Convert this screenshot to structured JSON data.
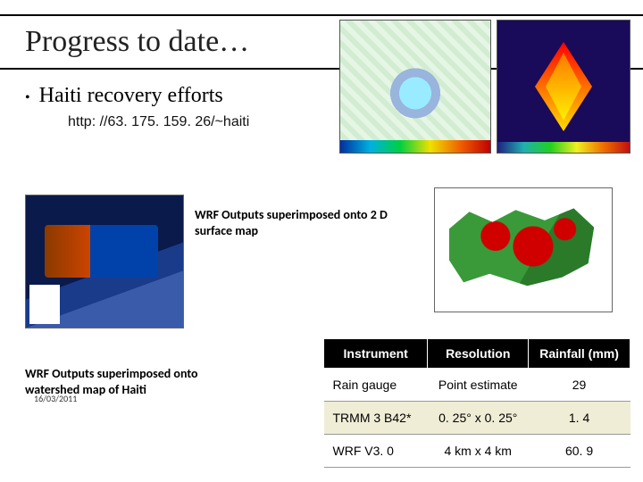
{
  "title": "Progress to date…",
  "bullet": "Haiti recovery efforts",
  "url": "http: //63. 175. 159. 26/~haiti",
  "mid_caption": "WRF Outputs superimposed onto 2 D surface map",
  "left_caption": "WRF Outputs superimposed onto watershed map of Haiti",
  "date": "16/03/2011",
  "table": {
    "headers": [
      "Instrument",
      "Resolution",
      "Rainfall (mm)"
    ],
    "rows": [
      [
        "Rain gauge",
        "Point estimate",
        "29"
      ],
      [
        "TRMM 3 B42*",
        "0. 25° x 0. 25°",
        "1. 4"
      ],
      [
        "WRF V3. 0",
        "4 km x 4 km",
        "60. 9"
      ]
    ]
  },
  "colors": {
    "rule": "#000000",
    "th_bg": "#000000",
    "th_fg": "#ffffff",
    "alt_row_bg": "#f0edd6"
  }
}
